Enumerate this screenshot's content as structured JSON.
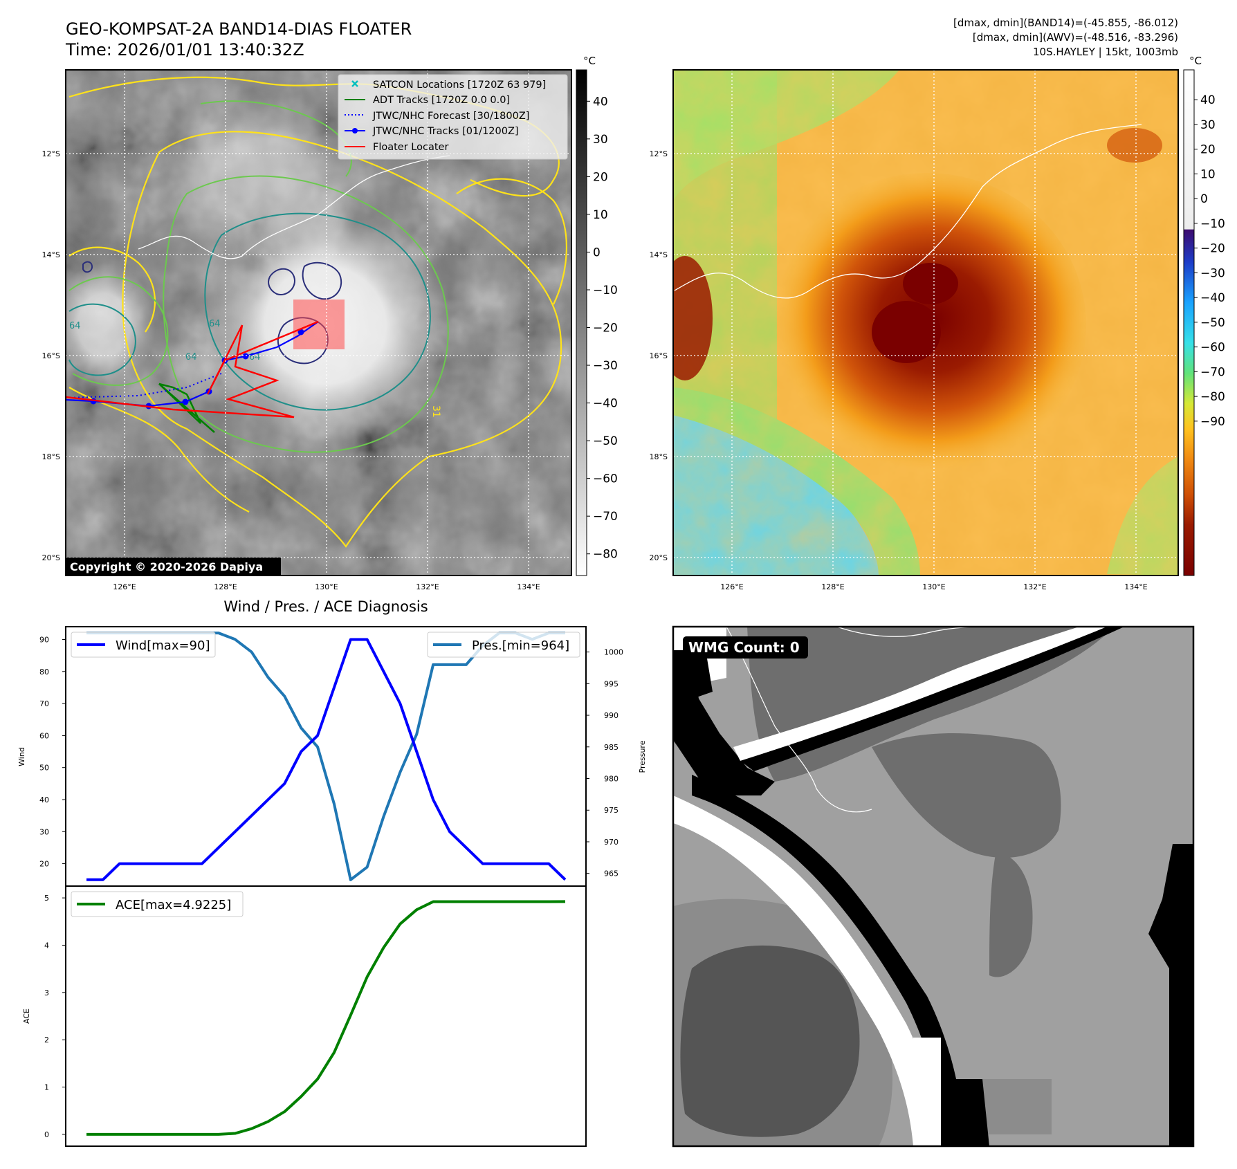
{
  "header": {
    "title_line1": "GEO-KOMPSAT-2A BAND14-DIAS FLOATER",
    "title_line2": "Time: 2026/01/01 13:40:32Z",
    "info_line1": "[dmax, dmin](BAND14)=(-45.855, -86.012)",
    "info_line2": "[dmax, dmin](AWV)=(-48.516, -83.296)",
    "info_line3": "10S.HAYLEY | 15kt, 1003mb"
  },
  "map_axes": {
    "lat_labels": [
      "12°S",
      "14°S",
      "16°S",
      "18°S",
      "20°S"
    ],
    "lon_labels": [
      "126°E",
      "128°E",
      "130°E",
      "132°E",
      "134°E"
    ]
  },
  "ir_colorbar": {
    "unit": "°C",
    "ticks": [
      "40",
      "30",
      "20",
      "10",
      "0",
      "−10",
      "−20",
      "−30",
      "−40",
      "−50",
      "−60",
      "−70",
      "−80"
    ]
  },
  "color_colorbar": {
    "unit": "°C",
    "ticks": [
      "40",
      "30",
      "20",
      "10",
      "0",
      "−10",
      "−20",
      "−30",
      "−40",
      "−50",
      "−60",
      "−70",
      "−80",
      "−90"
    ]
  },
  "map_legend": {
    "items": [
      {
        "label": "SATCON Locations [1720Z 63 979]",
        "color": "#00bfbf",
        "style": "x-marker"
      },
      {
        "label": "ADT Tracks [1720Z 0.0 0.0]",
        "color": "#008000",
        "style": "solid"
      },
      {
        "label": "JTWC/NHC Forecast [30/1800Z]",
        "color": "#0000ff",
        "style": "dotted"
      },
      {
        "label": "JTWC/NHC Tracks [01/1200Z]",
        "color": "#0000ff",
        "style": "solid-dot"
      },
      {
        "label": "Floater Locater",
        "color": "#ff0000",
        "style": "solid"
      }
    ]
  },
  "contour_labels": [
    "64",
    "64",
    "64",
    "64",
    "31"
  ],
  "copyright": "Copyright © 2020-2026 Dapiya",
  "wmg_label": "WMG Count: 0",
  "colors": {
    "wind": "#0000ff",
    "pressure": "#1f77b4",
    "ace": "#008000",
    "track_red": "#ff0000",
    "contour_yellow": "#ffe21a",
    "contour_green": "#6cc94e",
    "contour_teal": "#1f8f8a",
    "contour_navy": "#2b2f7a"
  },
  "chart_data": [
    {
      "type": "line",
      "title": "Wind / Pres. / ACE Diagnosis",
      "ylabel": "Wind",
      "y2label": "Pressure",
      "ylim": [
        13,
        94
      ],
      "y2lim": [
        963,
        1004
      ],
      "yticks": [
        20,
        30,
        40,
        50,
        60,
        70,
        80,
        90
      ],
      "y2ticks": [
        965,
        970,
        975,
        980,
        985,
        990,
        995,
        1000
      ],
      "x": [
        0,
        1,
        2,
        3,
        4,
        5,
        6,
        7,
        8,
        9,
        10,
        11,
        12,
        13,
        14,
        15,
        16,
        17,
        18,
        19,
        20,
        21,
        22,
        23,
        24,
        25,
        26,
        27,
        28,
        29
      ],
      "series": [
        {
          "name": "Wind[max=90]",
          "axis": "left",
          "values": [
            15,
            15,
            20,
            20,
            20,
            20,
            20,
            20,
            25,
            30,
            35,
            40,
            45,
            55,
            60,
            75,
            90,
            90,
            80,
            70,
            55,
            40,
            30,
            25,
            20,
            20,
            20,
            20,
            20,
            15
          ]
        },
        {
          "name": "Pres.[min=964]",
          "axis": "left-hidden-pres",
          "values": [
            1003,
            1003,
            1003,
            1003,
            1003,
            1003,
            1003,
            1003,
            1003,
            1002,
            1000,
            996,
            993,
            988,
            985,
            976,
            964,
            966,
            974,
            981,
            987,
            998,
            998,
            998,
            1001,
            1003,
            1003,
            1002,
            1003,
            1003
          ]
        }
      ]
    },
    {
      "type": "line",
      "ylabel": "ACE",
      "ylim": [
        -0.25,
        5.25
      ],
      "yticks": [
        0,
        1,
        2,
        3,
        4,
        5
      ],
      "x": [
        0,
        1,
        2,
        3,
        4,
        5,
        6,
        7,
        8,
        9,
        10,
        11,
        12,
        13,
        14,
        15,
        16,
        17,
        18,
        19,
        20,
        21,
        22,
        23,
        24,
        25,
        26,
        27,
        28,
        29
      ],
      "series": [
        {
          "name": "ACE[max=4.9225]",
          "values": [
            0,
            0,
            0,
            0,
            0,
            0,
            0,
            0,
            0,
            0.02,
            0.12,
            0.27,
            0.48,
            0.8,
            1.17,
            1.73,
            2.52,
            3.33,
            3.95,
            4.45,
            4.75,
            4.92,
            4.92,
            4.92,
            4.92,
            4.92,
            4.92,
            4.92,
            4.92,
            4.9225
          ]
        }
      ]
    }
  ]
}
